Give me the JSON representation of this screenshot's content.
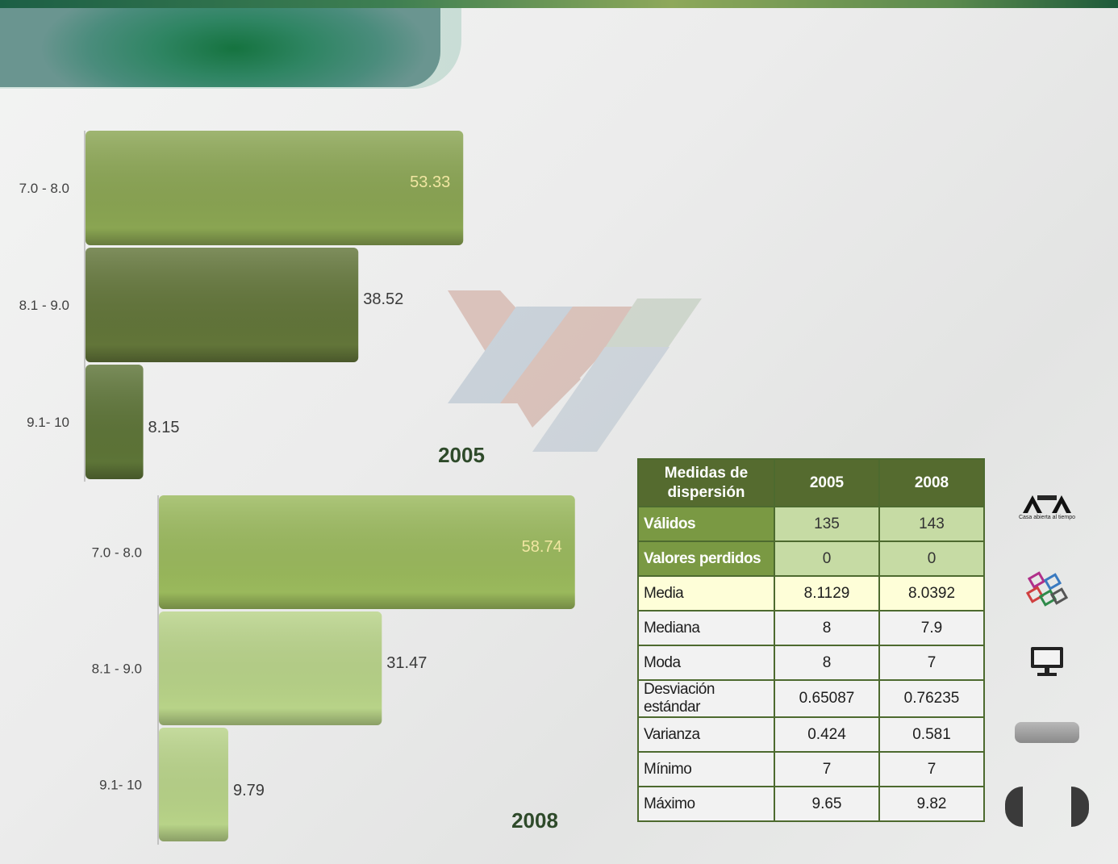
{
  "chart_data": [
    {
      "type": "bar",
      "orientation": "horizontal",
      "categories": [
        "7.0 - 8.0",
        "8.1 - 9.0",
        "9.1- 10"
      ],
      "values": [
        53.33,
        38.52,
        8.15
      ],
      "title": "2005",
      "xlim": [
        0,
        60
      ],
      "colors": [
        "#8aa552",
        "#627539",
        "#5d7437"
      ]
    },
    {
      "type": "bar",
      "orientation": "horizontal",
      "categories": [
        "7.0 - 8.0",
        "8.1 - 9.0",
        "9.1- 10"
      ],
      "values": [
        58.74,
        31.47,
        9.79
      ],
      "title": "2008",
      "xlim": [
        0,
        60
      ],
      "colors": [
        "#9ab95c",
        "#b8d388",
        "#b8d388"
      ]
    }
  ],
  "table": {
    "headers": [
      "Medidas  de dispersión",
      "2005",
      "2008"
    ],
    "rows": [
      {
        "label": "Válidos",
        "v2005": "135",
        "v2008": "143",
        "style": "g"
      },
      {
        "label": "Valores perdidos",
        "v2005": "0",
        "v2008": "0",
        "style": "g"
      },
      {
        "label": "Media",
        "v2005": "8.1129",
        "v2008": "8.0392",
        "style": "y"
      },
      {
        "label": "Mediana",
        "v2005": "8",
        "v2008": "7.9",
        "style": "w"
      },
      {
        "label": "Moda",
        "v2005": "8",
        "v2008": "7",
        "style": "w"
      },
      {
        "label": "Desviación estándar",
        "v2005": "0.65087",
        "v2008": "0.76235",
        "style": "w"
      },
      {
        "label": "Varianza",
        "v2005": "0.424",
        "v2008": "0.581",
        "style": "w"
      },
      {
        "label": "Mínimo",
        "v2005": "7",
        "v2008": "7",
        "style": "w"
      },
      {
        "label": "Máximo",
        "v2005": "9.65",
        "v2008": "9.82",
        "style": "w"
      }
    ]
  },
  "sidebar": {
    "logo_text": "UAM",
    "logo_tagline": "Casa abierta al tiempo",
    "icons": [
      "uam-logo-icon",
      "colorful-shapes-icon",
      "monitor-icon",
      "rounded-button-icon",
      "prev-arrow-icon",
      "next-arrow-icon"
    ]
  }
}
